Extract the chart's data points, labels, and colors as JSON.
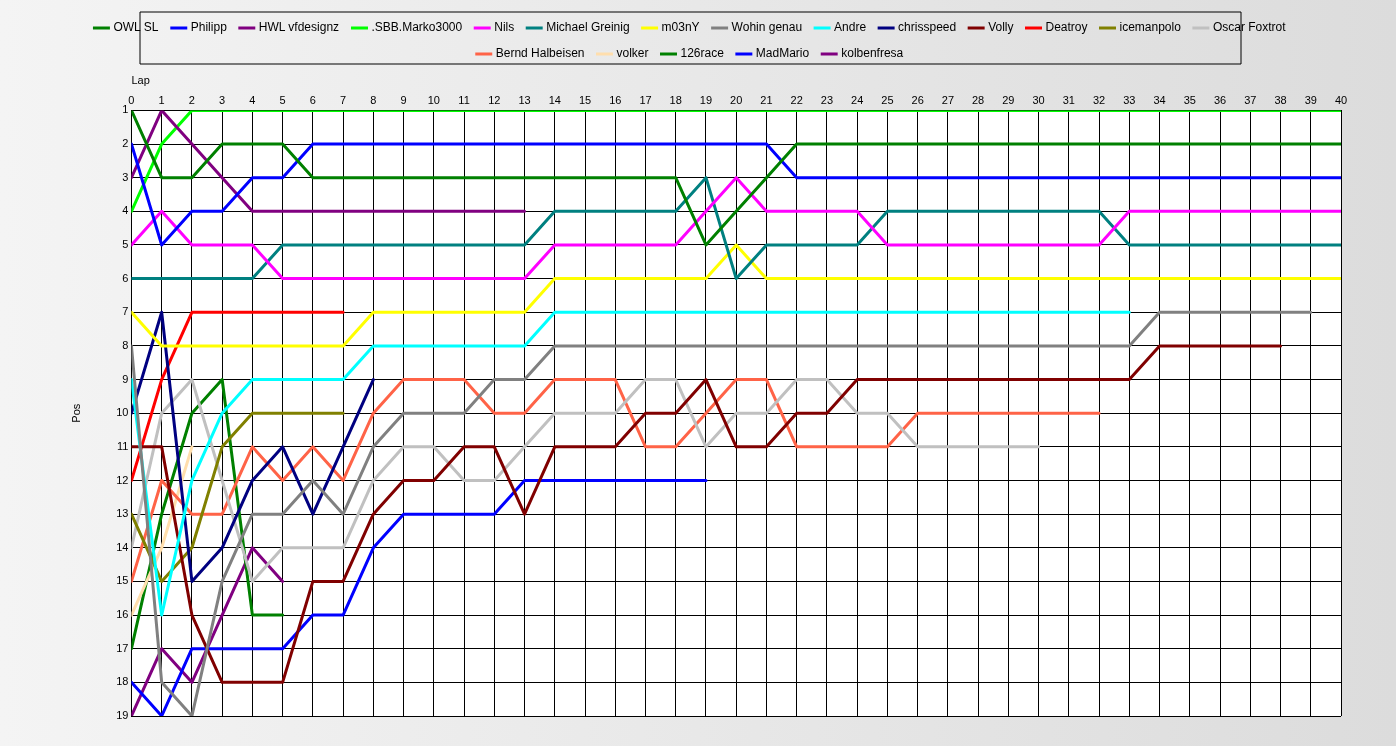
{
  "chart_data": {
    "type": "line",
    "xlabel": "Lap",
    "ylabel": "Pos",
    "x": [
      0,
      1,
      2,
      3,
      4,
      5,
      6,
      7,
      8,
      9,
      10,
      11,
      12,
      13,
      14,
      15,
      16,
      17,
      18,
      19,
      20,
      21,
      22,
      23,
      24,
      25,
      26,
      27,
      28,
      29,
      30,
      31,
      32,
      33,
      34,
      35,
      36,
      37,
      38,
      39,
      40
    ],
    "xlim": [
      0,
      40
    ],
    "xticks": [
      0,
      1,
      2,
      3,
      4,
      5,
      6,
      7,
      8,
      9,
      10,
      11,
      12,
      13,
      14,
      15,
      16,
      17,
      18,
      19,
      20,
      21,
      22,
      23,
      24,
      25,
      26,
      27,
      28,
      29,
      30,
      31,
      32,
      33,
      34,
      35,
      36,
      37,
      38,
      39,
      40
    ],
    "ylim": [
      19,
      1
    ],
    "yticks": [
      1,
      2,
      3,
      4,
      5,
      6,
      7,
      8,
      9,
      10,
      11,
      12,
      13,
      14,
      15,
      16,
      17,
      18,
      19
    ],
    "grid": true,
    "legend": "top",
    "marker": "none",
    "line_style": "solid",
    "series": [
      {
        "name": "OWL SL",
        "color": "#008000",
        "values": [
          1,
          3,
          3,
          2,
          2,
          2,
          3,
          3,
          3,
          3,
          3,
          3,
          3,
          3,
          3,
          3,
          3,
          3,
          3,
          5,
          4,
          3,
          2,
          2,
          2,
          2,
          2,
          2,
          2,
          2,
          2,
          2,
          2,
          2,
          2,
          2,
          2,
          2,
          2,
          2,
          2
        ]
      },
      {
        "name": "Philipp",
        "color": "#0000ff",
        "values": [
          2,
          5,
          4,
          4,
          3,
          3,
          2,
          2,
          2,
          2,
          2,
          2,
          2,
          2,
          2,
          2,
          2,
          2,
          2,
          2,
          2,
          2,
          3,
          3,
          3,
          3,
          3,
          3,
          3,
          3,
          3,
          3,
          3,
          3,
          3,
          3,
          3,
          3,
          3,
          3,
          3
        ]
      },
      {
        "name": "HWL vfdesignz",
        "color": "#800080",
        "values": [
          3,
          1,
          2,
          3,
          4,
          4,
          4,
          4,
          4,
          4,
          4,
          4,
          4,
          4,
          null,
          null,
          null,
          null,
          null,
          null,
          null,
          null,
          null,
          null,
          null,
          null,
          null,
          null,
          null,
          null,
          null,
          null,
          null,
          null,
          null,
          null,
          null,
          null,
          null,
          null,
          null
        ]
      },
      {
        "name": ".SBB.Marko3000",
        "color": "#00ff00",
        "values": [
          4,
          2,
          1,
          1,
          1,
          1,
          1,
          1,
          1,
          1,
          1,
          1,
          1,
          1,
          1,
          1,
          1,
          1,
          1,
          1,
          1,
          1,
          1,
          1,
          1,
          1,
          1,
          1,
          1,
          1,
          1,
          1,
          1,
          1,
          1,
          1,
          1,
          1,
          1,
          1,
          1
        ]
      },
      {
        "name": "Nils",
        "color": "#ff00ff",
        "values": [
          5,
          4,
          5,
          5,
          5,
          6,
          6,
          6,
          6,
          6,
          6,
          6,
          6,
          6,
          5,
          5,
          5,
          5,
          5,
          4,
          3,
          4,
          4,
          4,
          4,
          5,
          5,
          5,
          5,
          5,
          5,
          5,
          5,
          4,
          4,
          4,
          4,
          4,
          4,
          4,
          4
        ]
      },
      {
        "name": "Michael Greinig",
        "color": "#008080",
        "values": [
          6,
          6,
          6,
          6,
          6,
          5,
          5,
          5,
          5,
          5,
          5,
          5,
          5,
          5,
          4,
          4,
          4,
          4,
          4,
          3,
          6,
          5,
          5,
          5,
          5,
          4,
          4,
          4,
          4,
          4,
          4,
          4,
          4,
          5,
          5,
          5,
          5,
          5,
          5,
          5,
          5
        ]
      },
      {
        "name": "m03nY",
        "color": "#ffff00",
        "values": [
          7,
          8,
          8,
          8,
          8,
          8,
          8,
          8,
          7,
          7,
          7,
          7,
          7,
          7,
          6,
          6,
          6,
          6,
          6,
          6,
          5,
          6,
          6,
          6,
          6,
          6,
          6,
          6,
          6,
          6,
          6,
          6,
          6,
          6,
          6,
          6,
          6,
          6,
          6,
          6,
          6
        ]
      },
      {
        "name": "Wohin genau",
        "color": "#808080",
        "values": [
          8,
          18,
          19,
          15,
          13,
          13,
          12,
          13,
          11,
          10,
          10,
          10,
          9,
          9,
          8,
          8,
          8,
          8,
          8,
          8,
          8,
          8,
          8,
          8,
          8,
          8,
          8,
          8,
          8,
          8,
          8,
          8,
          8,
          8,
          7,
          7,
          7,
          7,
          7,
          7,
          null
        ]
      },
      {
        "name": "Andre",
        "color": "#00ffff",
        "values": [
          9,
          16,
          12,
          10,
          9,
          9,
          9,
          9,
          8,
          8,
          8,
          8,
          8,
          8,
          7,
          7,
          7,
          7,
          7,
          7,
          7,
          7,
          7,
          7,
          7,
          7,
          7,
          7,
          7,
          7,
          7,
          7,
          7,
          7,
          null,
          null,
          null,
          null,
          null,
          null,
          null
        ]
      },
      {
        "name": "chrisspeed",
        "color": "#000080",
        "values": [
          10,
          7,
          15,
          14,
          12,
          11,
          13,
          11,
          9,
          null,
          null,
          null,
          null,
          null,
          null,
          null,
          null,
          null,
          null,
          null,
          null,
          null,
          null,
          null,
          null,
          null,
          null,
          null,
          null,
          null,
          null,
          null,
          null,
          null,
          null,
          null,
          null,
          null,
          null,
          null,
          null
        ]
      },
      {
        "name": "Volly",
        "color": "#800000",
        "values": [
          11,
          11,
          16,
          18,
          18,
          18,
          15,
          15,
          13,
          12,
          12,
          11,
          11,
          13,
          11,
          11,
          11,
          10,
          10,
          9,
          11,
          11,
          10,
          10,
          9,
          9,
          9,
          9,
          9,
          9,
          9,
          9,
          9,
          9,
          8,
          8,
          8,
          8,
          8,
          null,
          null
        ]
      },
      {
        "name": "Deatroy",
        "color": "#ff0000",
        "values": [
          12,
          9,
          7,
          7,
          7,
          7,
          7,
          7,
          null,
          null,
          null,
          null,
          null,
          null,
          null,
          null,
          null,
          null,
          null,
          null,
          null,
          null,
          null,
          null,
          null,
          null,
          null,
          null,
          null,
          null,
          null,
          null,
          null,
          null,
          null,
          null,
          null,
          null,
          null,
          null,
          null
        ]
      },
      {
        "name": "icemanpolo",
        "color": "#808000",
        "values": [
          13,
          15,
          14,
          11,
          10,
          10,
          10,
          10,
          null,
          null,
          null,
          null,
          null,
          null,
          null,
          null,
          null,
          null,
          null,
          null,
          null,
          null,
          null,
          null,
          null,
          null,
          null,
          null,
          null,
          null,
          null,
          null,
          null,
          null,
          null,
          null,
          null,
          null,
          null,
          null,
          null
        ]
      },
      {
        "name": "Oscar Foxtrot",
        "color": "#c0c0c0",
        "values": [
          14,
          10,
          9,
          12,
          15,
          14,
          14,
          14,
          12,
          11,
          11,
          12,
          12,
          11,
          10,
          10,
          10,
          9,
          9,
          11,
          10,
          10,
          9,
          9,
          10,
          10,
          11,
          11,
          11,
          11,
          11,
          null,
          null,
          null,
          null,
          null,
          null,
          null,
          null,
          null,
          null
        ]
      },
      {
        "name": "Bernd Halbeisen",
        "color": "#ff6347",
        "values": [
          15,
          12,
          13,
          13,
          11,
          12,
          11,
          12,
          10,
          9,
          9,
          9,
          10,
          10,
          9,
          9,
          9,
          11,
          11,
          10,
          9,
          9,
          11,
          11,
          11,
          11,
          10,
          10,
          10,
          10,
          10,
          10,
          10,
          null,
          null,
          null,
          null,
          null,
          null,
          null,
          null
        ]
      },
      {
        "name": "volker",
        "color": "#ffdead",
        "values": [
          16,
          14,
          11,
          null,
          null,
          null,
          null,
          null,
          null,
          null,
          null,
          null,
          null,
          null,
          null,
          null,
          null,
          null,
          null,
          null,
          null,
          null,
          null,
          null,
          null,
          null,
          null,
          null,
          null,
          null,
          null,
          null,
          null,
          null,
          null,
          null,
          null,
          null,
          null,
          null,
          null
        ]
      },
      {
        "name": "126race",
        "color": "#008000",
        "values": [
          17,
          13,
          10,
          9,
          16,
          16,
          null,
          null,
          null,
          null,
          null,
          null,
          null,
          null,
          null,
          null,
          null,
          null,
          null,
          null,
          null,
          null,
          null,
          null,
          null,
          null,
          null,
          null,
          null,
          null,
          null,
          null,
          null,
          null,
          null,
          null,
          null,
          null,
          null,
          null,
          null
        ]
      },
      {
        "name": "MadMario",
        "color": "#0000ff",
        "values": [
          18,
          19,
          17,
          17,
          17,
          17,
          16,
          16,
          14,
          13,
          13,
          13,
          13,
          12,
          12,
          12,
          12,
          12,
          12,
          12,
          null,
          null,
          null,
          null,
          null,
          null,
          null,
          null,
          null,
          null,
          null,
          null,
          null,
          null,
          null,
          null,
          null,
          null,
          null,
          null,
          null
        ]
      },
      {
        "name": "kolbenfresa",
        "color": "#800080",
        "values": [
          19,
          17,
          18,
          16,
          14,
          15,
          null,
          null,
          null,
          null,
          null,
          null,
          null,
          null,
          null,
          null,
          null,
          null,
          null,
          null,
          null,
          null,
          null,
          null,
          null,
          null,
          null,
          null,
          null,
          null,
          null,
          null,
          null,
          null,
          null,
          null,
          null,
          null,
          null,
          null,
          null
        ]
      }
    ]
  }
}
